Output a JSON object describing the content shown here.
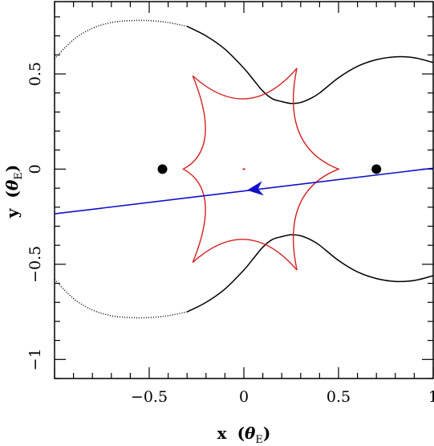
{
  "chart_data": {
    "type": "line",
    "title": "",
    "xlabel": "x (θ_E)",
    "ylabel": "y (θ_E)",
    "xlabel_parts": {
      "var": "x",
      "open": "(",
      "theta": "θ",
      "sub": "E",
      "close": ")"
    },
    "ylabel_parts": {
      "var": "y",
      "open": "(",
      "theta": "θ",
      "sub": "E",
      "close": ")"
    },
    "xlim": [
      -1.0,
      1.0
    ],
    "ylim": [
      -1.1,
      0.88
    ],
    "xticks": [
      -0.5,
      0,
      0.5,
      1
    ],
    "xtick_labels": [
      "−0.5",
      "0",
      "0.5",
      "1"
    ],
    "yticks": [
      -1,
      -0.5,
      0,
      0.5
    ],
    "ytick_labels": [
      "−1",
      "−0.5",
      "0",
      "0.5"
    ],
    "grid": false,
    "colors": {
      "critical_curve": "#000000",
      "caustic": "#d42020",
      "trajectory": "#1010c8",
      "lens": "#000000"
    },
    "lens_positions": [
      {
        "x": -0.43,
        "y": 0.0
      },
      {
        "x": 0.7,
        "y": 0.0
      }
    ],
    "trajectory": {
      "start": [
        -1.0,
        -0.235
      ],
      "end": [
        1.0,
        0.005
      ],
      "arrow_at": [
        0.05,
        -0.107
      ],
      "direction": "left"
    },
    "caustic": {
      "cusps": [
        [
          -0.27,
          0.49
        ],
        [
          0.28,
          0.53
        ],
        [
          0.5,
          0.0
        ],
        [
          0.28,
          -0.53
        ],
        [
          -0.27,
          -0.49
        ],
        [
          -0.32,
          0.0
        ]
      ],
      "small_dot": [
        0.0,
        0.0
      ]
    },
    "critical_curve_upper": {
      "x": [
        -1.0,
        -0.9,
        -0.8,
        -0.7,
        -0.6,
        -0.5,
        -0.4,
        -0.3,
        -0.2,
        -0.1,
        0.0,
        0.05,
        0.1,
        0.15,
        0.2,
        0.25,
        0.3,
        0.35,
        0.4,
        0.5,
        0.6,
        0.7,
        0.8,
        0.9,
        1.0
      ],
      "y": [
        0.58,
        0.68,
        0.74,
        0.77,
        0.78,
        0.78,
        0.77,
        0.75,
        0.7,
        0.63,
        0.53,
        0.47,
        0.41,
        0.37,
        0.355,
        0.345,
        0.35,
        0.37,
        0.4,
        0.48,
        0.54,
        0.575,
        0.59,
        0.585,
        0.56
      ]
    },
    "critical_curve_lower": {
      "x": [
        -1.0,
        -0.9,
        -0.8,
        -0.7,
        -0.6,
        -0.5,
        -0.4,
        -0.3,
        -0.2,
        -0.1,
        0.0,
        0.05,
        0.1,
        0.15,
        0.2,
        0.25,
        0.3,
        0.35,
        0.4,
        0.5,
        0.6,
        0.7,
        0.8,
        0.9,
        1.0
      ],
      "y": [
        -0.58,
        -0.68,
        -0.74,
        -0.77,
        -0.78,
        -0.78,
        -0.77,
        -0.75,
        -0.7,
        -0.63,
        -0.53,
        -0.47,
        -0.41,
        -0.37,
        -0.355,
        -0.345,
        -0.35,
        -0.37,
        -0.4,
        -0.48,
        -0.54,
        -0.575,
        -0.59,
        -0.585,
        -0.56
      ]
    },
    "critical_curve_dotted_until_x": -0.3
  }
}
